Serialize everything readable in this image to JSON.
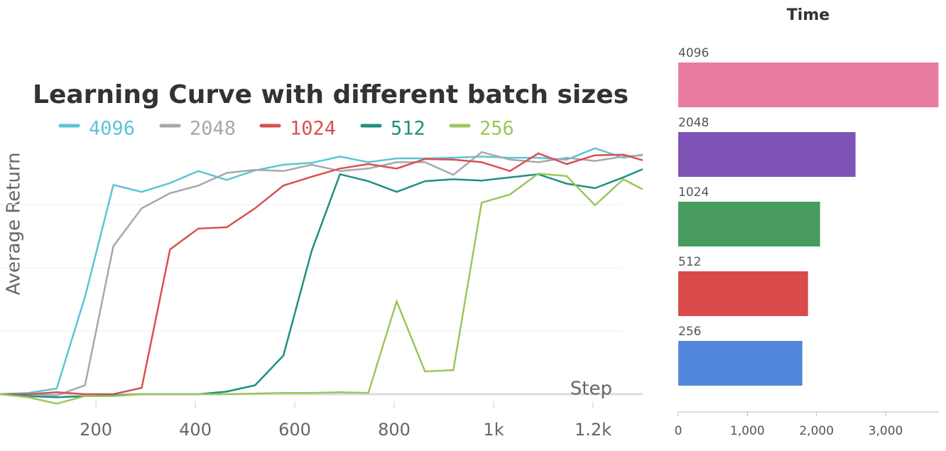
{
  "chart_data": [
    {
      "type": "line",
      "title": "Learning Curve with different batch sizes",
      "xlabel": "Step",
      "ylabel": "Average Return",
      "x": [
        7,
        64,
        121,
        178,
        235,
        292,
        349,
        406,
        463,
        520,
        577,
        634,
        691,
        748,
        805,
        862,
        919,
        976,
        1033,
        1090,
        1147,
        1204,
        1261,
        1300
      ],
      "series": [
        {
          "name": "4096",
          "color": "#5bc5d6",
          "values": [
            0,
            0.02,
            0.09,
            1.54,
            3.31,
            3.2,
            3.34,
            3.53,
            3.39,
            3.54,
            3.63,
            3.66,
            3.76,
            3.67,
            3.73,
            3.73,
            3.74,
            3.76,
            3.74,
            3.74,
            3.71,
            3.89,
            3.74,
            3.79
          ]
        },
        {
          "name": "2048",
          "color": "#a5a8ab",
          "values": [
            0,
            0,
            -0.02,
            0.14,
            2.34,
            2.94,
            3.18,
            3.3,
            3.5,
            3.55,
            3.53,
            3.63,
            3.53,
            3.57,
            3.67,
            3.67,
            3.47,
            3.83,
            3.71,
            3.67,
            3.74,
            3.69,
            3.76,
            3.78
          ]
        },
        {
          "name": "1024",
          "color": "#d9504f",
          "values": [
            0,
            0,
            0.03,
            0,
            0,
            0.1,
            2.29,
            2.62,
            2.64,
            2.94,
            3.3,
            3.44,
            3.57,
            3.64,
            3.57,
            3.72,
            3.71,
            3.67,
            3.53,
            3.81,
            3.64,
            3.78,
            3.79,
            3.7
          ]
        },
        {
          "name": "512",
          "color": "#1e9080",
          "values": [
            0,
            -0.03,
            -0.05,
            -0.03,
            -0.02,
            0,
            0,
            0,
            0.04,
            0.14,
            0.61,
            2.27,
            3.48,
            3.37,
            3.2,
            3.37,
            3.4,
            3.38,
            3.43,
            3.48,
            3.33,
            3.26,
            3.43,
            3.56
          ]
        },
        {
          "name": "256",
          "color": "#9cc65a",
          "values": [
            0,
            -0.05,
            -0.15,
            -0.03,
            -0.03,
            0,
            0,
            0,
            0,
            0.01,
            0.02,
            0.02,
            0.03,
            0.02,
            1.47,
            0.36,
            0.38,
            3.03,
            3.16,
            3.49,
            3.45,
            2.99,
            3.4,
            3.24
          ]
        }
      ],
      "xlim": [
        7,
        1300
      ],
      "xticks": [
        200,
        400,
        600,
        800,
        {
          "value": 1000,
          "label": "1k"
        },
        {
          "value": 1200,
          "label": "1.2k"
        }
      ],
      "ylim": [
        -0.2,
        4.0
      ],
      "yticks": [
        0,
        1,
        2,
        3
      ],
      "grid": true
    },
    {
      "type": "bar",
      "orientation": "horizontal",
      "title": "Time",
      "categories": [
        "4096",
        "2048",
        "1024",
        "512",
        "256"
      ],
      "values": [
        3764,
        2564,
        2051,
        1877,
        1795
      ],
      "colors": [
        "#e87ba0",
        "#7d53b5",
        "#479b5f",
        "#d94a4a",
        "#5387dc"
      ],
      "xlim": [
        0,
        3770
      ],
      "xticks": [
        0,
        {
          "value": 1000,
          "label": "1,000"
        },
        {
          "value": 2000,
          "label": "2,000"
        },
        {
          "value": 3000,
          "label": "3,000"
        }
      ]
    }
  ]
}
